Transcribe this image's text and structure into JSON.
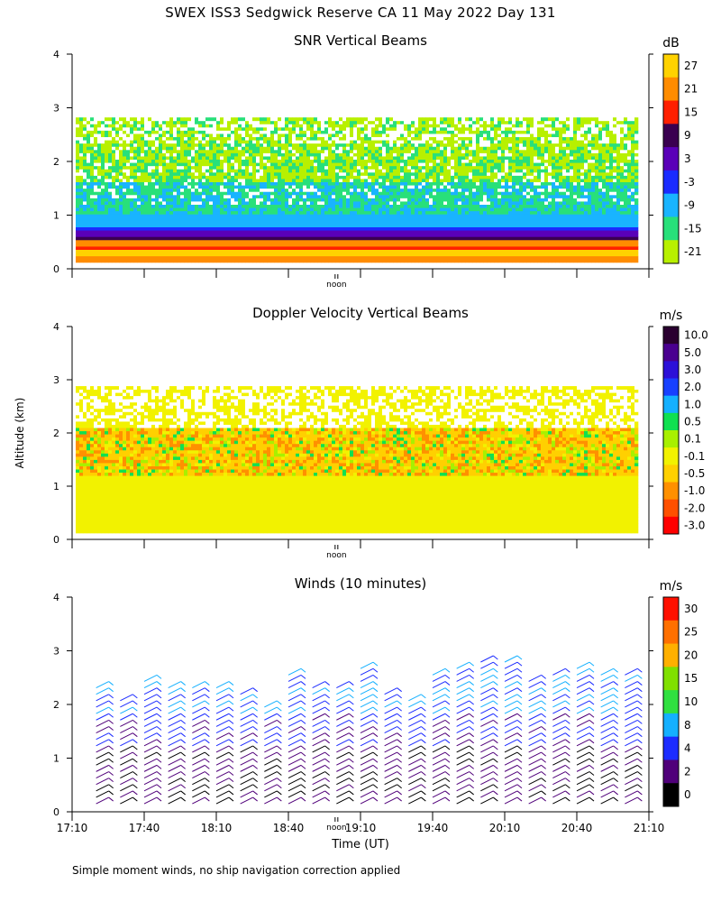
{
  "title": "SWEX ISS3 Sedgwick Reserve CA  11 May 2022 Day 131",
  "footnote": "Simple moment winds, no ship navigation correction applied",
  "shared": {
    "ylabel": "Altitude (km)",
    "xlabel": "Time (UT)",
    "noon_label": "noon",
    "x_tick_labels": [
      "17:10",
      "17:40",
      "18:10",
      "18:40",
      "19:10",
      "19:40",
      "20:10",
      "20:40",
      "21:10"
    ],
    "y_tick_labels": [
      "0",
      "1",
      "2",
      "3",
      "4"
    ]
  },
  "chart_data": [
    {
      "type": "heatmap",
      "title": "SNR Vertical Beams",
      "unit": "dB",
      "ylim": [
        0,
        4
      ],
      "colorbar_labels": [
        "27",
        "21",
        "15",
        "9",
        "3",
        "-3",
        "-9",
        "-15",
        "-21"
      ],
      "colors": [
        "#ffd200",
        "#ff8c00",
        "#ff2000",
        "#3a0050",
        "#5a00b8",
        "#1a2bff",
        "#19b4ff",
        "#28e07a",
        "#b8f000"
      ],
      "data_top_km": 2.8
    },
    {
      "type": "heatmap",
      "title": "Doppler Velocity Vertical Beams",
      "unit": "m/s",
      "ylim": [
        0,
        4
      ],
      "colorbar_labels": [
        "10.0",
        "5.0",
        "3.0",
        "2.0",
        "1.0",
        "0.5",
        "0.1",
        "-0.1",
        "-0.5",
        "-1.0",
        "-2.0",
        "-3.0"
      ],
      "colors": [
        "#2a0030",
        "#4a0090",
        "#2c10d8",
        "#1840ff",
        "#14b0ff",
        "#10e050",
        "#a8f000",
        "#f2f200",
        "#ffd000",
        "#ff9000",
        "#ff5000",
        "#ff0000"
      ],
      "data_top_km": 2.85
    },
    {
      "type": "scatter",
      "title": "Winds (10 minutes)",
      "unit": "m/s",
      "ylim": [
        0,
        4
      ],
      "colorbar_labels": [
        "30",
        "25",
        "20",
        "15",
        "10",
        "8",
        "4",
        "2",
        "0"
      ],
      "colors": [
        "#ff1000",
        "#ff7000",
        "#ffb000",
        "#80e000",
        "#30e040",
        "#14b0ff",
        "#1c2cff",
        "#50007a",
        "#000000"
      ],
      "x_times_utc": [
        "17:20",
        "17:30",
        "17:40",
        "17:50",
        "18:00",
        "18:10",
        "18:20",
        "18:30",
        "18:40",
        "18:50",
        "19:00",
        "19:10",
        "19:20",
        "19:30",
        "19:40",
        "19:50",
        "20:00",
        "20:10",
        "20:20",
        "20:30",
        "20:40",
        "20:50",
        "21:00"
      ],
      "profile_top_km": [
        2.35,
        2.1,
        2.45,
        2.35,
        2.35,
        2.4,
        2.3,
        2.0,
        2.6,
        2.35,
        2.4,
        2.75,
        2.3,
        2.1,
        2.65,
        2.7,
        2.8,
        2.9,
        2.45,
        2.65,
        2.7,
        2.6,
        2.6
      ]
    }
  ]
}
